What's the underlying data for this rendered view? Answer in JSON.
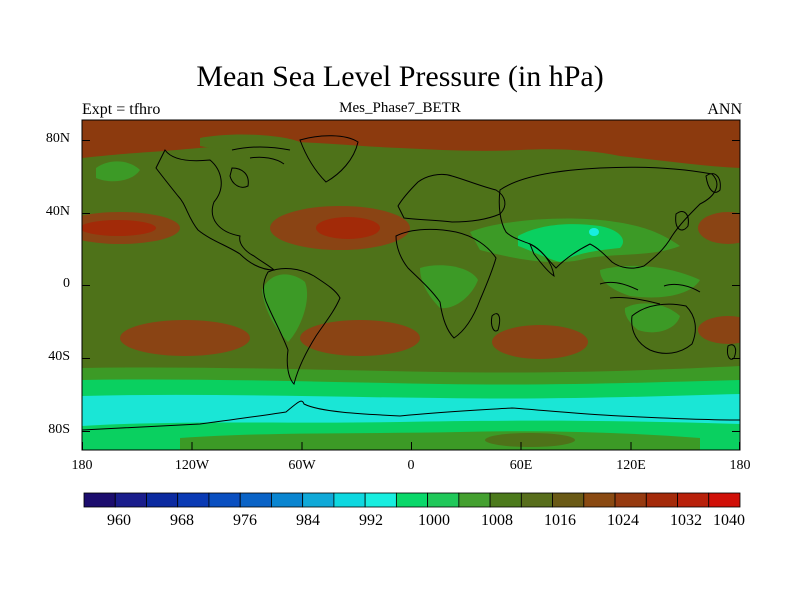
{
  "title": "Mean Sea Level Pressure (in hPa)",
  "subtitle_left": "Expt = tfhro",
  "subtitle_center": "Mes_Phase7_BETR",
  "subtitle_right": "ANN",
  "lat_labels": [
    "80N",
    "40N",
    "0",
    "40S",
    "80S"
  ],
  "lon_labels": [
    "180",
    "120W",
    "60W",
    "0",
    "60E",
    "120E",
    "180"
  ],
  "colorbar_labels": [
    "960",
    "968",
    "976",
    "984",
    "992",
    "1000",
    "1008",
    "1016",
    "1024",
    "1032",
    "1040"
  ],
  "colorbar_colors": [
    "#1c0d6e",
    "#1a1d8c",
    "#0b2aa0",
    "#0a3ab4",
    "#0a4fc0",
    "#0a63c6",
    "#0a85d0",
    "#10a9d8",
    "#0ed8e0",
    "#18eee0",
    "#0ad86a",
    "#20c85a",
    "#44a030",
    "#4c7a1c",
    "#586e1c",
    "#6a5a16",
    "#8a4a12",
    "#963a10",
    "#a42a0a",
    "#b8200a",
    "#d01008"
  ],
  "colors": {
    "ocean_base": "#4e7219",
    "polar_north": "#8c3a0e",
    "high_pressure": "#8a4414",
    "high_core": "#a22a08",
    "trough_green": "#3c9a26",
    "bright_green": "#0ad060",
    "antarctic_cyan": "#1ae6d6",
    "antarctic_edge": "#20c86a",
    "coastline": "#000000"
  }
}
